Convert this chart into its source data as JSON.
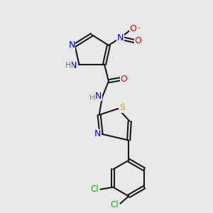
{
  "title": "",
  "background_color": "#e8e8e8",
  "bond_color": "#1a1a1a",
  "atom_colors": {
    "N": "#0000ff",
    "O": "#ff0000",
    "S": "#ccaa00",
    "Cl": "#00cc00",
    "H_label": "#5a8a7a",
    "C": "#1a1a1a"
  },
  "figsize": [
    3.0,
    3.0
  ],
  "dpi": 100
}
